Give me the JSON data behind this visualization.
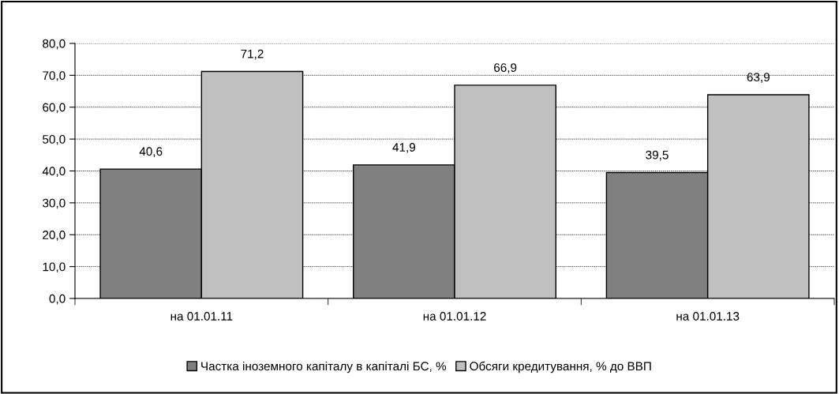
{
  "chart_data": {
    "type": "bar",
    "categories": [
      "на 01.01.11",
      "на 01.01.12",
      "на 01.01.13"
    ],
    "series": [
      {
        "name": "Частка іноземного капіталу в капіталі БС, %",
        "color": "#808080",
        "values": [
          40.6,
          41.9,
          39.5
        ],
        "value_labels": [
          "40,6",
          "41,9",
          "39,5"
        ]
      },
      {
        "name": "Обсяги кредитування, % до ВВП",
        "color": "#c0c0c0",
        "values": [
          71.2,
          66.9,
          63.9
        ],
        "value_labels": [
          "71,2",
          "66,9",
          "63,9"
        ]
      }
    ],
    "ylim": [
      0,
      80
    ],
    "yticks": [
      {
        "value": 0,
        "label": "0,0"
      },
      {
        "value": 10,
        "label": "10,0"
      },
      {
        "value": 20,
        "label": "20,0"
      },
      {
        "value": 30,
        "label": "30,0"
      },
      {
        "value": 40,
        "label": "40,0"
      },
      {
        "value": 50,
        "label": "50,0"
      },
      {
        "value": 60,
        "label": "60,0"
      },
      {
        "value": 70,
        "label": "70,0"
      },
      {
        "value": 80,
        "label": "80,0"
      }
    ],
    "grid": "y",
    "legend": "bottom"
  }
}
